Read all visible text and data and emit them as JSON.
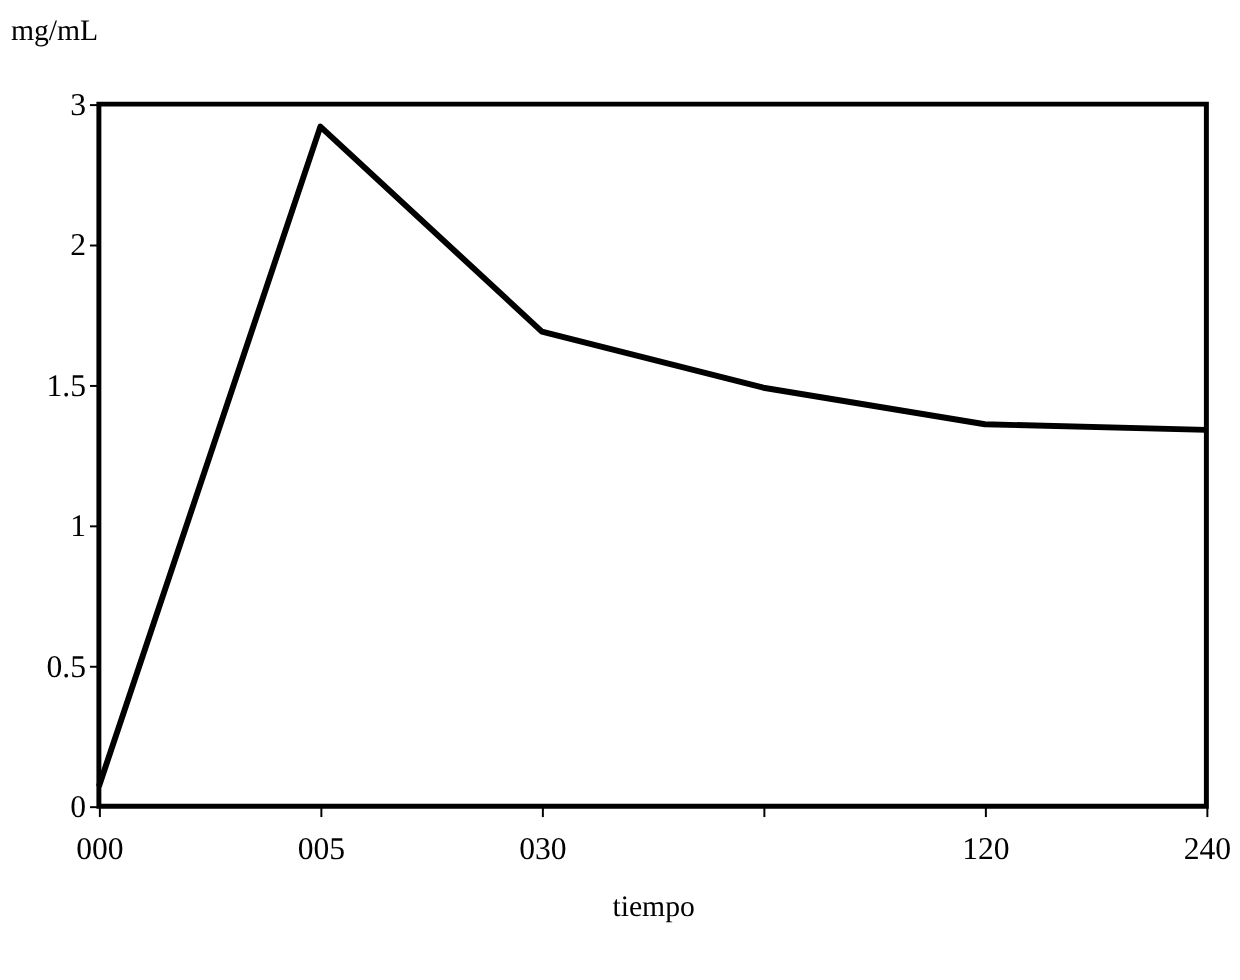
{
  "chart_data": {
    "type": "line",
    "xlabel": "tiempo",
    "ylabel": "mg/mL",
    "categories": [
      "000",
      "005",
      "030",
      null,
      "120",
      "240"
    ],
    "series": [
      {
        "color": "#000000",
        "values": [
          0.07,
          2.42,
          1.69,
          1.49,
          1.36,
          1.34
        ]
      }
    ],
    "ylim": [
      0,
      2.5
    ],
    "yticks": [
      0,
      0.5,
      1,
      1.5,
      2,
      {
        "value": 2.5,
        "label": "3"
      }
    ],
    "grid": false,
    "marker": "none",
    "line_style": "solid"
  }
}
